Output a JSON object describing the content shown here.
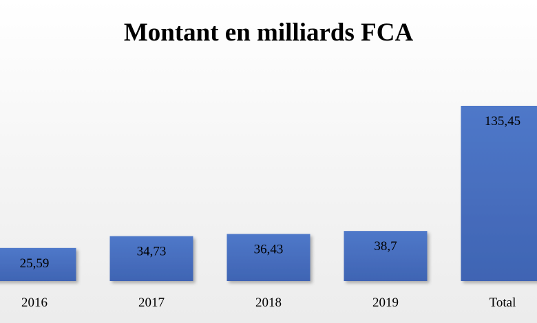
{
  "chart_data": {
    "type": "bar",
    "title": "Montant en milliards FCA",
    "xlabel": "",
    "ylabel": "",
    "categories": [
      "2016",
      "2017",
      "2018",
      "2019",
      "Total"
    ],
    "values": [
      25.59,
      34.73,
      36.43,
      38.7,
      135.45
    ],
    "value_labels": [
      "25,59",
      "34,73",
      "36,43",
      "38,7",
      "135,45"
    ],
    "ylim": [
      0,
      135.45
    ],
    "grid": false,
    "legend": "none",
    "bar_color": "#4a72c4"
  }
}
